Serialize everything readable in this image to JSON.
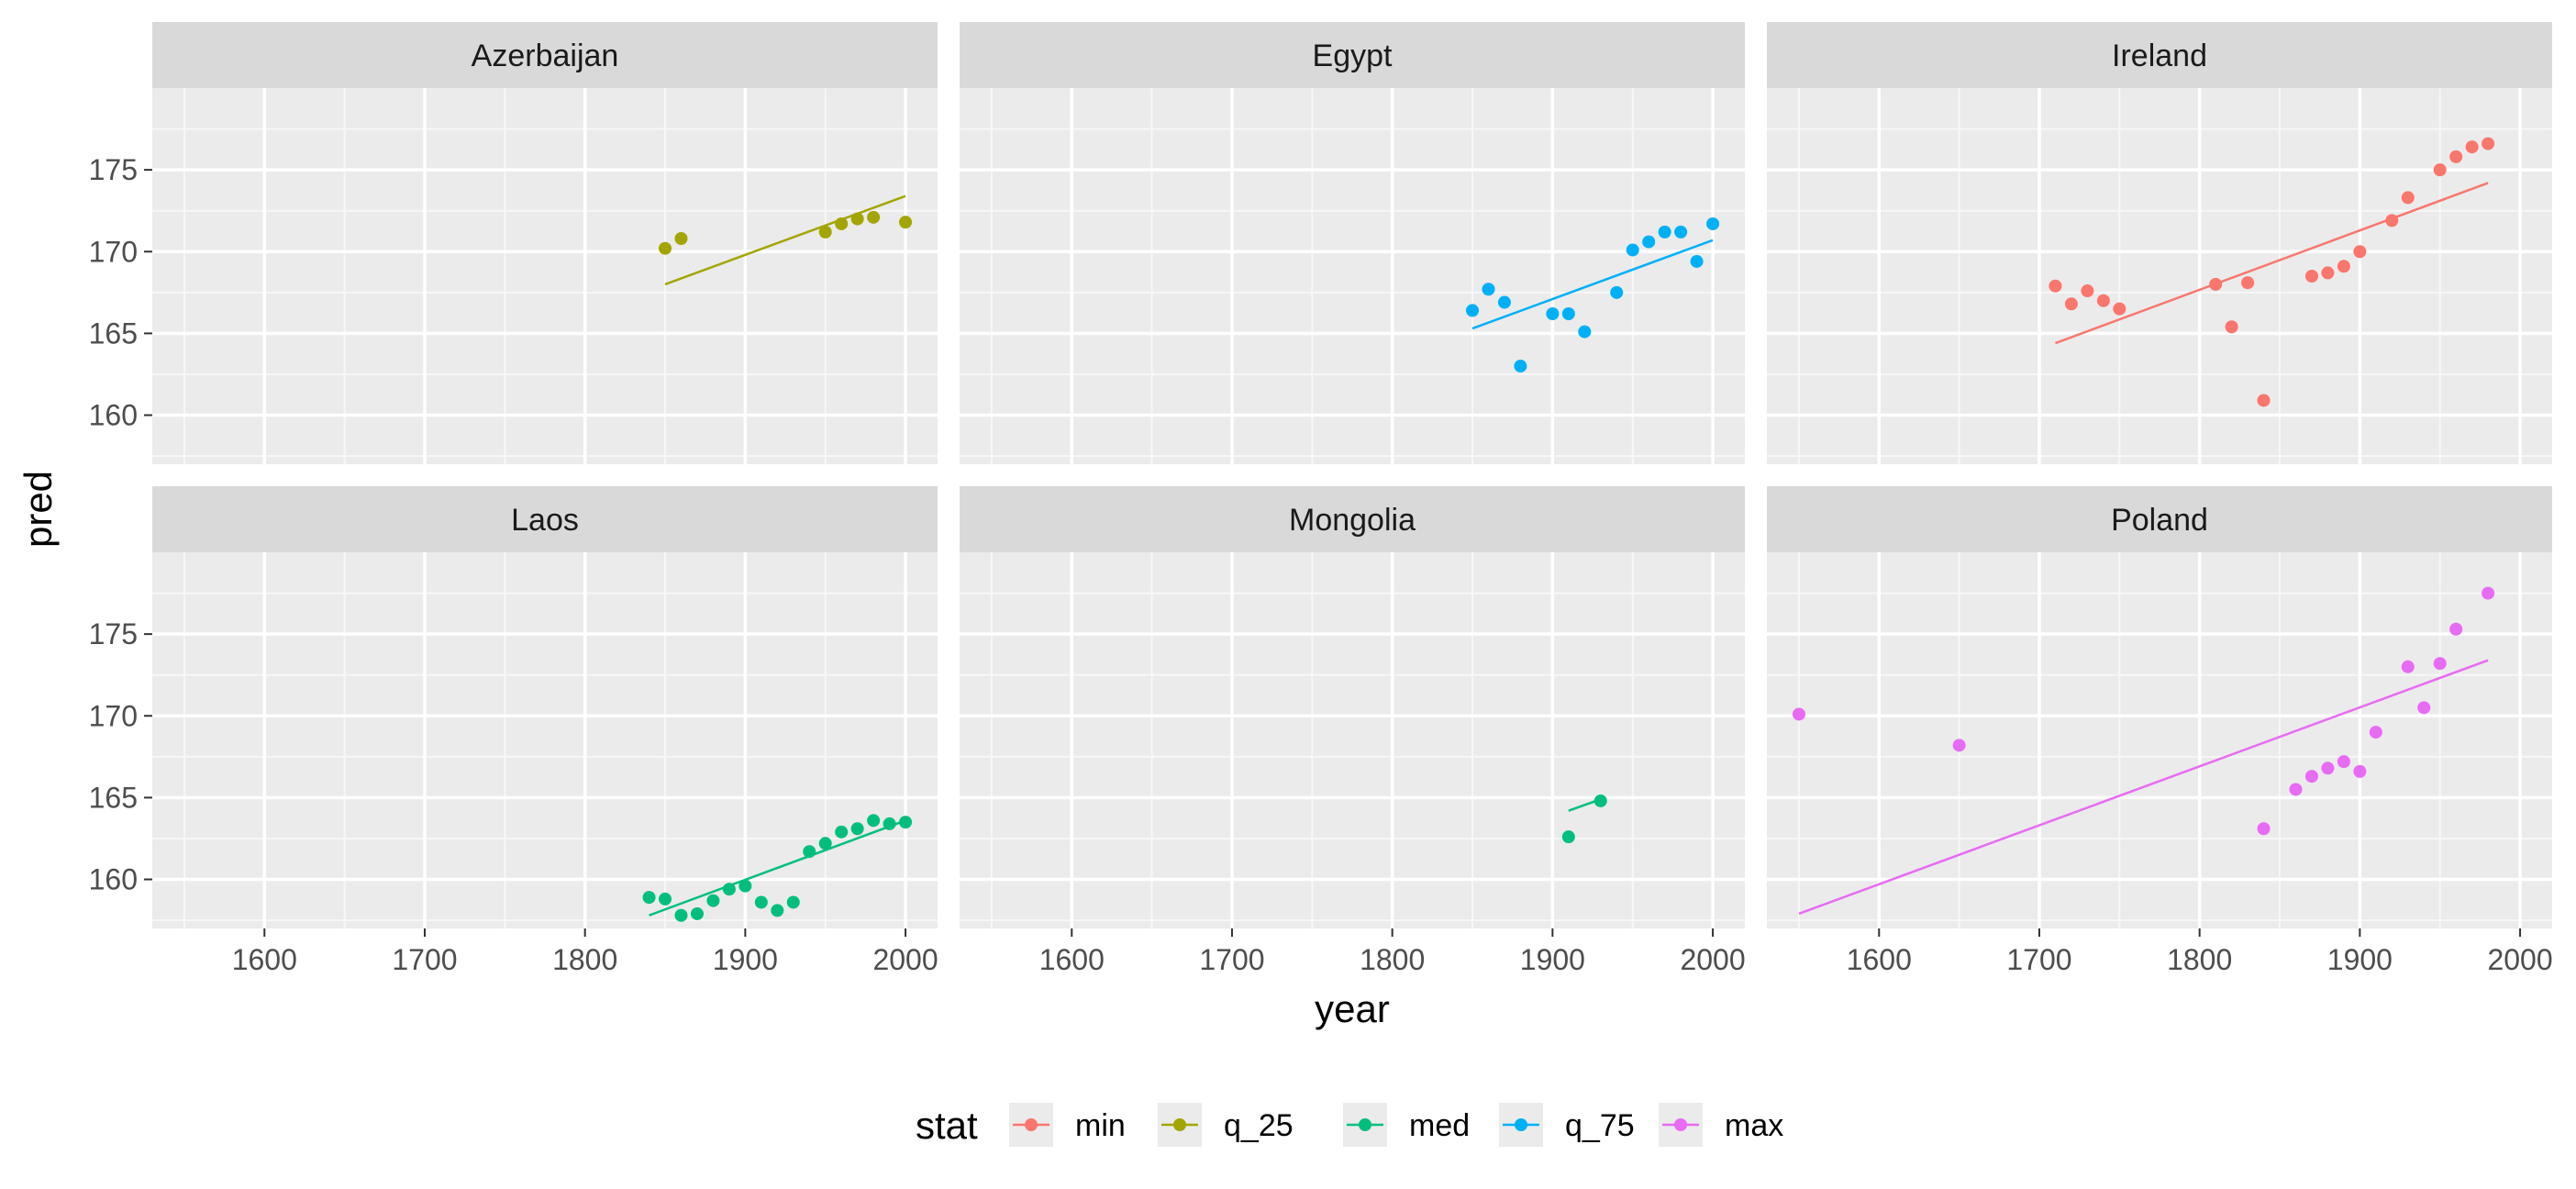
{
  "chart_data": {
    "type": "scatter",
    "xlabel": "year",
    "ylabel": "pred",
    "xlim": [
      1530,
      2020
    ],
    "ylim": [
      157,
      180
    ],
    "x_ticks": [
      1600,
      1700,
      1800,
      1900,
      2000
    ],
    "y_ticks": [
      160,
      165,
      170,
      175
    ],
    "grid": true,
    "legend": {
      "title": "stat",
      "placement": "bottom",
      "entries": [
        {
          "name": "min",
          "color": "#F8766D"
        },
        {
          "name": "q_25",
          "color": "#A3A500"
        },
        {
          "name": "med",
          "color": "#00BF7D"
        },
        {
          "name": "q_75",
          "color": "#00B0F6"
        },
        {
          "name": "max",
          "color": "#E76BF3"
        }
      ]
    },
    "panels": [
      {
        "title": "Azerbaijan",
        "stat": "q_25",
        "points": [
          [
            1850,
            170.2
          ],
          [
            1860,
            170.8
          ],
          [
            1950,
            171.2
          ],
          [
            1960,
            171.7
          ],
          [
            1970,
            172.0
          ],
          [
            1980,
            172.1
          ],
          [
            2000,
            171.8
          ]
        ],
        "fit": [
          [
            1850,
            168.0
          ],
          [
            2000,
            173.4
          ]
        ]
      },
      {
        "title": "Egypt",
        "stat": "q_75",
        "points": [
          [
            1850,
            166.4
          ],
          [
            1860,
            167.7
          ],
          [
            1870,
            166.9
          ],
          [
            1880,
            163.0
          ],
          [
            1900,
            166.2
          ],
          [
            1910,
            166.2
          ],
          [
            1920,
            165.1
          ],
          [
            1940,
            167.5
          ],
          [
            1950,
            170.1
          ],
          [
            1960,
            170.6
          ],
          [
            1970,
            171.2
          ],
          [
            1980,
            171.2
          ],
          [
            1990,
            169.4
          ],
          [
            2000,
            171.7
          ]
        ],
        "fit": [
          [
            1850,
            165.3
          ],
          [
            2000,
            170.7
          ]
        ]
      },
      {
        "title": "Ireland",
        "stat": "min",
        "points": [
          [
            1710,
            167.9
          ],
          [
            1720,
            166.8
          ],
          [
            1730,
            167.6
          ],
          [
            1740,
            167.0
          ],
          [
            1750,
            166.5
          ],
          [
            1810,
            168.0
          ],
          [
            1820,
            165.4
          ],
          [
            1830,
            168.1
          ],
          [
            1840,
            160.9
          ],
          [
            1870,
            168.5
          ],
          [
            1880,
            168.7
          ],
          [
            1890,
            169.1
          ],
          [
            1900,
            170.0
          ],
          [
            1920,
            171.9
          ],
          [
            1930,
            173.3
          ],
          [
            1950,
            175.0
          ],
          [
            1960,
            175.8
          ],
          [
            1970,
            176.4
          ],
          [
            1980,
            176.6
          ]
        ],
        "fit": [
          [
            1710,
            164.4
          ],
          [
            1980,
            174.2
          ]
        ]
      },
      {
        "title": "Laos",
        "stat": "med",
        "points": [
          [
            1840,
            158.9
          ],
          [
            1850,
            158.8
          ],
          [
            1860,
            157.8
          ],
          [
            1870,
            157.9
          ],
          [
            1880,
            158.7
          ],
          [
            1890,
            159.4
          ],
          [
            1900,
            159.6
          ],
          [
            1910,
            158.6
          ],
          [
            1920,
            158.1
          ],
          [
            1930,
            158.6
          ],
          [
            1940,
            161.7
          ],
          [
            1950,
            162.2
          ],
          [
            1960,
            162.9
          ],
          [
            1970,
            163.1
          ],
          [
            1980,
            163.6
          ],
          [
            1990,
            163.4
          ],
          [
            2000,
            163.5
          ]
        ],
        "fit": [
          [
            1840,
            157.8
          ],
          [
            2000,
            163.6
          ]
        ]
      },
      {
        "title": "Mongolia",
        "stat": "med",
        "points": [
          [
            1910,
            162.6
          ],
          [
            1930,
            164.8
          ]
        ],
        "fit": [
          [
            1910,
            164.2
          ],
          [
            1930,
            164.9
          ]
        ]
      },
      {
        "title": "Poland",
        "stat": "max",
        "points": [
          [
            1550,
            170.1
          ],
          [
            1650,
            168.2
          ],
          [
            1840,
            163.1
          ],
          [
            1860,
            165.5
          ],
          [
            1870,
            166.3
          ],
          [
            1880,
            166.8
          ],
          [
            1890,
            167.2
          ],
          [
            1900,
            166.6
          ],
          [
            1910,
            169.0
          ],
          [
            1930,
            173.0
          ],
          [
            1940,
            170.5
          ],
          [
            1950,
            173.2
          ],
          [
            1960,
            175.3
          ],
          [
            1980,
            177.5
          ]
        ],
        "fit": [
          [
            1550,
            157.9
          ],
          [
            1980,
            173.4
          ]
        ]
      }
    ]
  }
}
